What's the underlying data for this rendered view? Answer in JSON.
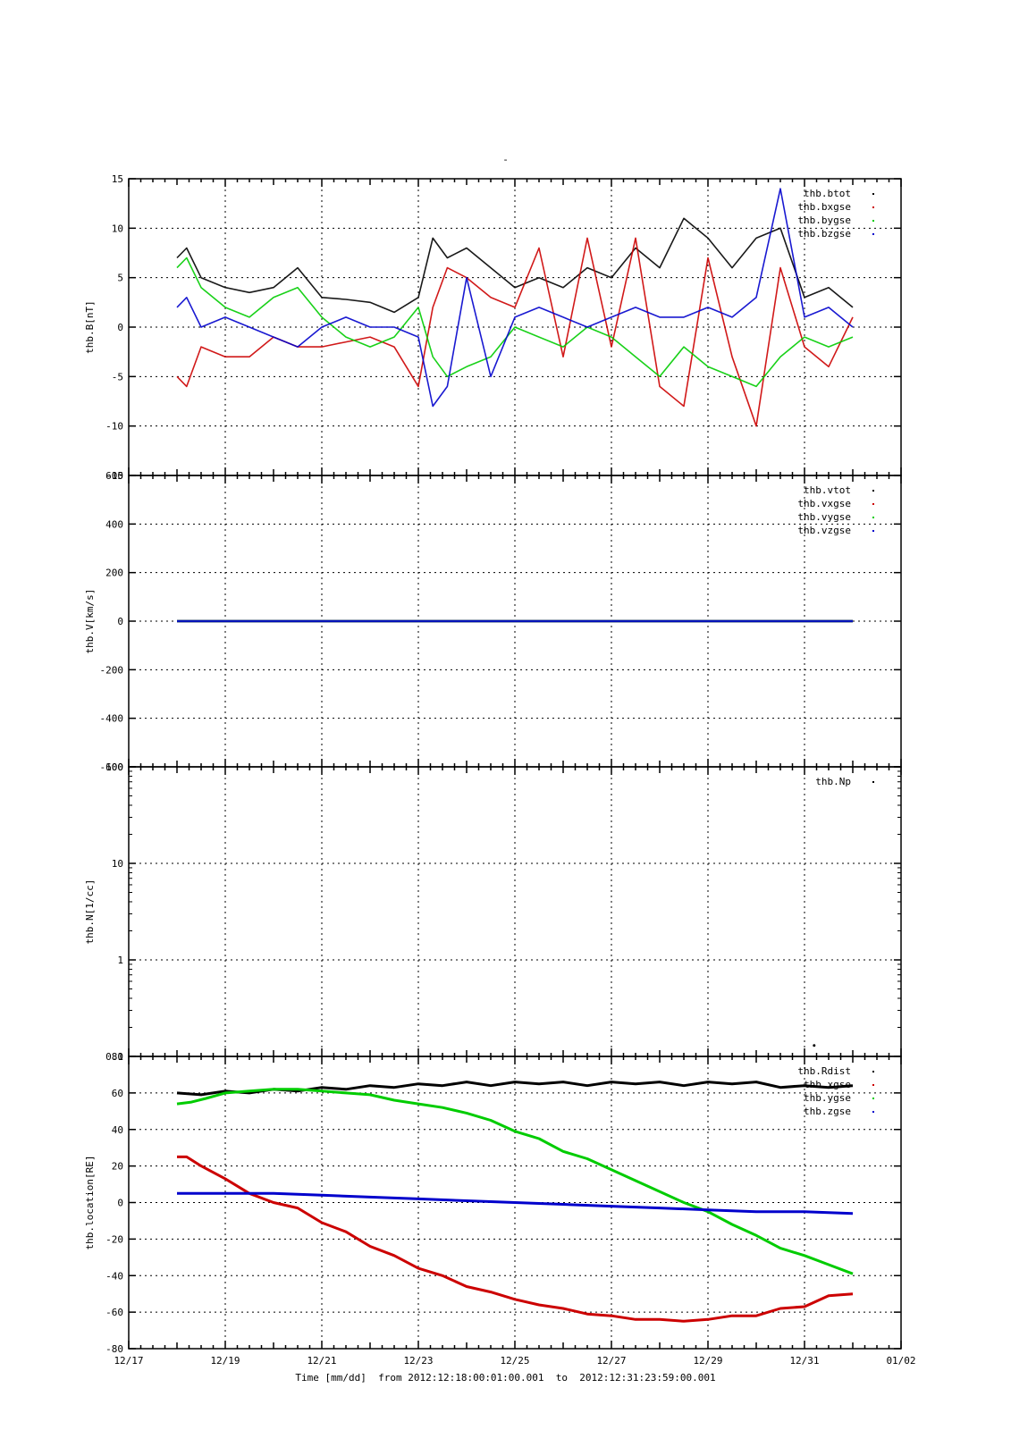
{
  "page_title": "-",
  "time_caption": "Time [mm/dd]  from 2012:12:18:00:01:00.001  to  2012:12:31:23:59:00.001",
  "colors": {
    "black": "#000000",
    "red": "#cc0000",
    "green": "#00cc00",
    "blue": "#0000cc"
  },
  "chart_data": [
    {
      "id": "mag",
      "type": "scatter",
      "ylabel": "thb.B[nT]",
      "ylim": [
        -15,
        15
      ],
      "yticks": [
        -15,
        -10,
        -5,
        0,
        5,
        10,
        15
      ],
      "x_unit": "day of December 2012",
      "xlim": [
        17,
        33
      ],
      "grid": true,
      "legend_position": "top-right",
      "series": [
        {
          "name": "thb.btot",
          "color": "black",
          "x": [
            18.0,
            18.2,
            18.5,
            19.0,
            19.5,
            20.0,
            20.5,
            21.0,
            21.5,
            22.0,
            22.5,
            23.0,
            23.3,
            23.6,
            24.0,
            24.5,
            25.0,
            25.5,
            26.0,
            26.5,
            27.0,
            27.5,
            28.0,
            28.5,
            29.0,
            29.5,
            30.0,
            30.5,
            31.0,
            31.5,
            32.0
          ],
          "y": [
            7,
            8,
            5,
            4,
            3.5,
            4,
            6,
            3,
            2.8,
            2.5,
            1.5,
            3,
            9,
            7,
            8,
            6,
            4,
            5,
            4,
            6,
            5,
            8,
            6,
            11,
            9,
            6,
            9,
            10,
            3,
            4,
            2
          ]
        },
        {
          "name": "thb.bxgse",
          "color": "red",
          "x": [
            18.0,
            18.2,
            18.5,
            19.0,
            19.5,
            20.0,
            20.5,
            21.0,
            21.5,
            22.0,
            22.5,
            23.0,
            23.3,
            23.6,
            24.0,
            24.5,
            25.0,
            25.5,
            26.0,
            26.5,
            27.0,
            27.5,
            28.0,
            28.5,
            29.0,
            29.5,
            30.0,
            30.5,
            31.0,
            31.5,
            32.0
          ],
          "y": [
            -5,
            -6,
            -2,
            -3,
            -3,
            -1,
            -2,
            -2,
            -1.5,
            -1,
            -2,
            -6,
            2,
            6,
            5,
            3,
            2,
            8,
            -3,
            9,
            -2,
            9,
            -6,
            -8,
            7,
            -3,
            -10,
            6,
            -2,
            -4,
            1
          ]
        },
        {
          "name": "thb.bygse",
          "color": "green",
          "x": [
            18.0,
            18.2,
            18.5,
            19.0,
            19.5,
            20.0,
            20.5,
            21.0,
            21.5,
            22.0,
            22.5,
            23.0,
            23.3,
            23.6,
            24.0,
            24.5,
            25.0,
            25.5,
            26.0,
            26.5,
            27.0,
            27.5,
            28.0,
            28.5,
            29.0,
            29.5,
            30.0,
            30.5,
            31.0,
            31.5,
            32.0
          ],
          "y": [
            6,
            7,
            4,
            2,
            1,
            3,
            4,
            1,
            -1,
            -2,
            -1,
            2,
            -3,
            -5,
            -4,
            -3,
            0,
            -1,
            -2,
            0,
            -1,
            -3,
            -5,
            -2,
            -4,
            -5,
            -6,
            -3,
            -1,
            -2,
            -1
          ]
        },
        {
          "name": "thb.bzgse",
          "color": "blue",
          "x": [
            18.0,
            18.2,
            18.5,
            19.0,
            19.5,
            20.0,
            20.5,
            21.0,
            21.5,
            22.0,
            22.5,
            23.0,
            23.3,
            23.6,
            24.0,
            24.5,
            25.0,
            25.5,
            26.0,
            26.5,
            27.0,
            27.5,
            28.0,
            28.5,
            29.0,
            29.5,
            30.0,
            30.5,
            31.0,
            31.5,
            32.0
          ],
          "y": [
            2,
            3,
            0,
            1,
            0,
            -1,
            -2,
            0,
            1,
            0,
            0,
            -1,
            -8,
            -6,
            5,
            -5,
            1,
            2,
            1,
            0,
            1,
            2,
            1,
            1,
            2,
            1,
            3,
            14,
            1,
            2,
            0
          ]
        }
      ]
    },
    {
      "id": "vel",
      "type": "scatter",
      "ylabel": "thb.V[km/s]",
      "ylim": [
        -600,
        600
      ],
      "yticks": [
        -600,
        -400,
        -200,
        0,
        200,
        400,
        600
      ],
      "x_unit": "day of December 2012",
      "xlim": [
        17,
        33
      ],
      "grid": true,
      "legend_position": "top-right",
      "series": [
        {
          "name": "thb.vtot",
          "color": "black",
          "x": [
            18.0,
            32.0
          ],
          "y": [
            0,
            0
          ]
        },
        {
          "name": "thb.vxgse",
          "color": "red",
          "x": [
            18.0,
            32.0
          ],
          "y": [
            0,
            0
          ]
        },
        {
          "name": "thb.vygse",
          "color": "green",
          "x": [
            18.0,
            32.0
          ],
          "y": [
            0,
            0
          ]
        },
        {
          "name": "thb.vzgse",
          "color": "blue",
          "x": [
            18.0,
            32.0
          ],
          "y": [
            0,
            0
          ]
        }
      ]
    },
    {
      "id": "dens",
      "type": "scatter",
      "ylabel": "thb.N[1/cc]",
      "yscale": "log",
      "ylim": [
        0.1,
        100
      ],
      "yticks": [
        0.1,
        1,
        10,
        100
      ],
      "x_unit": "day of December 2012",
      "xlim": [
        17,
        33
      ],
      "grid": true,
      "legend_position": "top-right",
      "series": [
        {
          "name": "thb.Np",
          "color": "black",
          "x": [
            31.2
          ],
          "y": [
            0.13
          ]
        }
      ]
    },
    {
      "id": "loc",
      "type": "line",
      "ylabel": "thb.location[RE]",
      "ylim": [
        -80,
        80
      ],
      "yticks": [
        -80,
        -60,
        -40,
        -20,
        0,
        20,
        40,
        60,
        80
      ],
      "x_unit": "day of December 2012",
      "xlim": [
        17,
        33
      ],
      "xticks": [
        {
          "v": 17,
          "label": "12/17"
        },
        {
          "v": 19,
          "label": "12/19"
        },
        {
          "v": 21,
          "label": "12/21"
        },
        {
          "v": 23,
          "label": "12/23"
        },
        {
          "v": 25,
          "label": "12/25"
        },
        {
          "v": 27,
          "label": "12/27"
        },
        {
          "v": 29,
          "label": "12/29"
        },
        {
          "v": 31,
          "label": "12/31"
        },
        {
          "v": 33,
          "label": "01/02"
        }
      ],
      "grid": true,
      "legend_position": "top-right",
      "series": [
        {
          "name": "thb.Rdist",
          "color": "black",
          "x": [
            18.0,
            18.5,
            19.0,
            19.5,
            20.0,
            20.5,
            21.0,
            21.5,
            22.0,
            22.5,
            23.0,
            23.5,
            24.0,
            24.5,
            25.0,
            25.5,
            26.0,
            26.5,
            27.0,
            27.5,
            28.0,
            28.5,
            29.0,
            29.5,
            30.0,
            30.5,
            31.0,
            31.5,
            32.0
          ],
          "y": [
            60,
            59,
            61,
            60,
            62,
            61,
            63,
            62,
            64,
            63,
            65,
            64,
            66,
            64,
            66,
            65,
            66,
            64,
            66,
            65,
            66,
            64,
            66,
            65,
            66,
            63,
            64,
            63,
            64
          ]
        },
        {
          "name": "thb.xgse",
          "color": "red",
          "x": [
            18.0,
            18.2,
            18.5,
            19.0,
            19.5,
            20.0,
            20.5,
            21.0,
            21.5,
            22.0,
            22.5,
            23.0,
            23.5,
            24.0,
            24.5,
            25.0,
            25.5,
            26.0,
            26.5,
            27.0,
            27.5,
            28.0,
            28.5,
            29.0,
            29.5,
            30.0,
            30.5,
            31.0,
            31.5,
            32.0
          ],
          "y": [
            25,
            25,
            20,
            13,
            5,
            0,
            -3,
            -11,
            -16,
            -24,
            -29,
            -36,
            -40,
            -46,
            -49,
            -53,
            -56,
            -58,
            -61,
            -62,
            -64,
            -64,
            -65,
            -64,
            -62,
            -62,
            -58,
            -57,
            -51,
            -50
          ]
        },
        {
          "name": "thb.ygse",
          "color": "green",
          "x": [
            18.0,
            18.3,
            18.6,
            19.0,
            19.5,
            20.0,
            20.5,
            21.0,
            21.5,
            22.0,
            22.5,
            23.0,
            23.5,
            24.0,
            24.5,
            25.0,
            25.5,
            26.0,
            26.5,
            27.0,
            27.5,
            28.0,
            28.5,
            29.0,
            29.5,
            30.0,
            30.5,
            31.0,
            31.5,
            32.0
          ],
          "y": [
            54,
            55,
            57,
            60,
            61,
            62,
            62,
            61,
            60,
            59,
            56,
            54,
            52,
            49,
            45,
            39,
            35,
            28,
            24,
            18,
            12,
            6,
            0,
            -5,
            -12,
            -18,
            -25,
            -29,
            -34,
            -39
          ]
        },
        {
          "name": "thb.zgse",
          "color": "blue",
          "x": [
            18.0,
            19.0,
            20.0,
            21.0,
            22.0,
            23.0,
            24.0,
            25.0,
            26.0,
            27.0,
            28.0,
            29.0,
            30.0,
            31.0,
            32.0
          ],
          "y": [
            5,
            5,
            5,
            4,
            3,
            2,
            1,
            0,
            -1,
            -2,
            -3,
            -4,
            -5,
            -5,
            -6
          ]
        }
      ]
    }
  ]
}
